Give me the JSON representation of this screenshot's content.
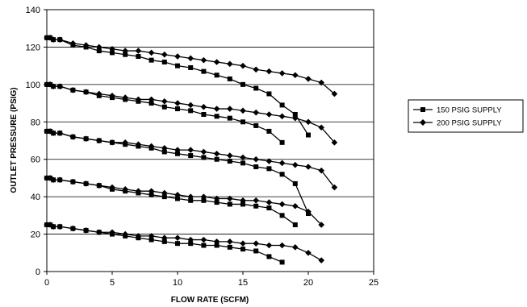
{
  "chart_data": {
    "type": "line",
    "xlabel": "FLOW RATE (SCFM)",
    "ylabel": "OUTLET PRESSURE (PSIG)",
    "xlim": [
      0,
      25
    ],
    "ylim": [
      0,
      140
    ],
    "xticks": [
      0,
      5,
      10,
      15,
      20,
      25
    ],
    "yticks": [
      0,
      20,
      40,
      60,
      80,
      100,
      120,
      140
    ],
    "grid": "horizontal",
    "legend_position": "right",
    "series": [
      {
        "name": "150 PSIG SUPPLY",
        "marker": "square",
        "color": "#000000",
        "curves": [
          [
            [
              0,
              125
            ],
            [
              0.25,
              125
            ],
            [
              0.5,
              124
            ],
            [
              1,
              124
            ],
            [
              2,
              121
            ],
            [
              3,
              120
            ],
            [
              4,
              118
            ],
            [
              5,
              117
            ],
            [
              6,
              116
            ],
            [
              7,
              115
            ],
            [
              8,
              113
            ],
            [
              9,
              112
            ],
            [
              10,
              110
            ],
            [
              11,
              109
            ],
            [
              12,
              107
            ],
            [
              13,
              105
            ],
            [
              14,
              103
            ],
            [
              15,
              100
            ],
            [
              16,
              98
            ],
            [
              17,
              95
            ],
            [
              18,
              89
            ],
            [
              19,
              84
            ],
            [
              20,
              73
            ]
          ],
          [
            [
              0,
              100
            ],
            [
              0.25,
              100
            ],
            [
              0.5,
              99
            ],
            [
              1,
              99
            ],
            [
              2,
              97
            ],
            [
              3,
              96
            ],
            [
              4,
              94
            ],
            [
              5,
              93
            ],
            [
              6,
              92
            ],
            [
              7,
              91
            ],
            [
              8,
              90
            ],
            [
              9,
              88
            ],
            [
              10,
              87
            ],
            [
              11,
              86
            ],
            [
              12,
              84
            ],
            [
              13,
              83
            ],
            [
              14,
              82
            ],
            [
              15,
              80
            ],
            [
              16,
              78
            ],
            [
              17,
              75
            ],
            [
              18,
              69
            ]
          ],
          [
            [
              0,
              75
            ],
            [
              0.25,
              75
            ],
            [
              0.5,
              74
            ],
            [
              1,
              74
            ],
            [
              2,
              72
            ],
            [
              3,
              71
            ],
            [
              4,
              70
            ],
            [
              5,
              69
            ],
            [
              6,
              68
            ],
            [
              7,
              67
            ],
            [
              8,
              66
            ],
            [
              9,
              64
            ],
            [
              10,
              63
            ],
            [
              11,
              62
            ],
            [
              12,
              61
            ],
            [
              13,
              60
            ],
            [
              14,
              59
            ],
            [
              15,
              58
            ],
            [
              16,
              56
            ],
            [
              17,
              55
            ],
            [
              18,
              52
            ],
            [
              19,
              47
            ],
            [
              20,
              31
            ]
          ],
          [
            [
              0,
              50
            ],
            [
              0.25,
              50
            ],
            [
              0.5,
              49
            ],
            [
              1,
              49
            ],
            [
              2,
              48
            ],
            [
              3,
              47
            ],
            [
              4,
              46
            ],
            [
              5,
              44
            ],
            [
              6,
              43
            ],
            [
              7,
              42
            ],
            [
              8,
              41
            ],
            [
              9,
              40
            ],
            [
              10,
              39
            ],
            [
              11,
              38
            ],
            [
              12,
              38
            ],
            [
              13,
              37
            ],
            [
              14,
              36
            ],
            [
              15,
              36
            ],
            [
              16,
              35
            ],
            [
              17,
              34
            ],
            [
              18,
              30
            ],
            [
              19,
              25
            ]
          ],
          [
            [
              0,
              25
            ],
            [
              0.25,
              25
            ],
            [
              0.5,
              24
            ],
            [
              1,
              24
            ],
            [
              2,
              23
            ],
            [
              3,
              22
            ],
            [
              4,
              21
            ],
            [
              5,
              20
            ],
            [
              6,
              19
            ],
            [
              7,
              18
            ],
            [
              8,
              17
            ],
            [
              9,
              16
            ],
            [
              10,
              15
            ],
            [
              11,
              15
            ],
            [
              12,
              14
            ],
            [
              13,
              14
            ],
            [
              14,
              13
            ],
            [
              15,
              12
            ],
            [
              16,
              11
            ],
            [
              17,
              8
            ],
            [
              18,
              5
            ]
          ]
        ]
      },
      {
        "name": "200 PSIG SUPPLY",
        "marker": "diamond",
        "color": "#000000",
        "curves": [
          [
            [
              0,
              125
            ],
            [
              0.25,
              125
            ],
            [
              0.5,
              124
            ],
            [
              1,
              124
            ],
            [
              2,
              122
            ],
            [
              3,
              121
            ],
            [
              4,
              120
            ],
            [
              5,
              119
            ],
            [
              6,
              118
            ],
            [
              7,
              118
            ],
            [
              8,
              117
            ],
            [
              9,
              116
            ],
            [
              10,
              115
            ],
            [
              11,
              114
            ],
            [
              12,
              113
            ],
            [
              13,
              112
            ],
            [
              14,
              111
            ],
            [
              15,
              110
            ],
            [
              16,
              108
            ],
            [
              17,
              107
            ],
            [
              18,
              106
            ],
            [
              19,
              105
            ],
            [
              20,
              103
            ],
            [
              21,
              101
            ],
            [
              22,
              95
            ]
          ],
          [
            [
              0,
              100
            ],
            [
              0.25,
              100
            ],
            [
              0.5,
              99
            ],
            [
              1,
              99
            ],
            [
              2,
              97
            ],
            [
              3,
              96
            ],
            [
              4,
              95
            ],
            [
              5,
              94
            ],
            [
              6,
              93
            ],
            [
              7,
              92
            ],
            [
              8,
              92
            ],
            [
              9,
              91
            ],
            [
              10,
              90
            ],
            [
              11,
              89
            ],
            [
              12,
              88
            ],
            [
              13,
              87
            ],
            [
              14,
              87
            ],
            [
              15,
              86
            ],
            [
              16,
              85
            ],
            [
              17,
              84
            ],
            [
              18,
              83
            ],
            [
              19,
              82
            ],
            [
              20,
              80
            ],
            [
              21,
              77
            ],
            [
              22,
              69
            ]
          ],
          [
            [
              0,
              75
            ],
            [
              0.25,
              75
            ],
            [
              0.5,
              74
            ],
            [
              1,
              74
            ],
            [
              2,
              72
            ],
            [
              3,
              71
            ],
            [
              4,
              70
            ],
            [
              5,
              69
            ],
            [
              6,
              69
            ],
            [
              7,
              68
            ],
            [
              8,
              67
            ],
            [
              9,
              66
            ],
            [
              10,
              65
            ],
            [
              11,
              65
            ],
            [
              12,
              64
            ],
            [
              13,
              63
            ],
            [
              14,
              62
            ],
            [
              15,
              61
            ],
            [
              16,
              60
            ],
            [
              17,
              59
            ],
            [
              18,
              58
            ],
            [
              19,
              57
            ],
            [
              20,
              56
            ],
            [
              21,
              54
            ],
            [
              22,
              45
            ]
          ],
          [
            [
              0,
              50
            ],
            [
              0.25,
              50
            ],
            [
              0.5,
              49
            ],
            [
              1,
              49
            ],
            [
              2,
              48
            ],
            [
              3,
              47
            ],
            [
              4,
              46
            ],
            [
              5,
              45
            ],
            [
              6,
              44
            ],
            [
              7,
              43
            ],
            [
              8,
              43
            ],
            [
              9,
              42
            ],
            [
              10,
              41
            ],
            [
              11,
              40
            ],
            [
              12,
              40
            ],
            [
              13,
              39
            ],
            [
              14,
              39
            ],
            [
              15,
              38
            ],
            [
              16,
              38
            ],
            [
              17,
              37
            ],
            [
              18,
              36
            ],
            [
              19,
              35
            ],
            [
              20,
              32
            ],
            [
              21,
              25
            ]
          ],
          [
            [
              0,
              25
            ],
            [
              0.25,
              25
            ],
            [
              0.5,
              24
            ],
            [
              1,
              24
            ],
            [
              2,
              23
            ],
            [
              3,
              22
            ],
            [
              4,
              21
            ],
            [
              5,
              21
            ],
            [
              6,
              20
            ],
            [
              7,
              19
            ],
            [
              8,
              19
            ],
            [
              9,
              18
            ],
            [
              10,
              18
            ],
            [
              11,
              17
            ],
            [
              12,
              17
            ],
            [
              13,
              16
            ],
            [
              14,
              16
            ],
            [
              15,
              15
            ],
            [
              16,
              15
            ],
            [
              17,
              14
            ],
            [
              18,
              14
            ],
            [
              19,
              13
            ],
            [
              20,
              10
            ],
            [
              21,
              6
            ]
          ]
        ]
      }
    ]
  }
}
